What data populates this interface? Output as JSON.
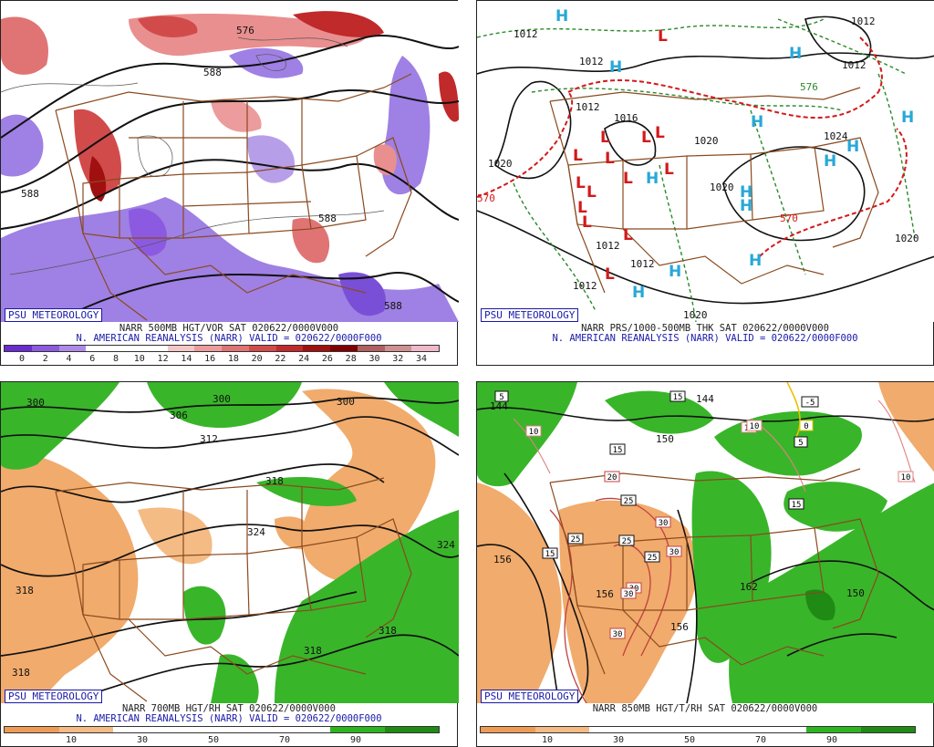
{
  "credit": "PSU METEOROLOGY",
  "panels": [
    {
      "id": "500mb",
      "caption1": "NARR 500MB HGT/VOR SAT 020622/0000V000",
      "caption2": "N. AMERICAN REANALYSIS (NARR) VALID = 020622/0000F000",
      "colorbar": [
        "#6a2bd0",
        "#8c5ae0",
        "#ae8ae8",
        "#ffffff",
        "#ffffff",
        "#ffffff",
        "#f4c7c7",
        "#ec9c9c",
        "#e07474",
        "#d24b4b",
        "#c02a2a",
        "#a01010",
        "#800000",
        "#b06060",
        "#cf9090",
        "#f0b8c8"
      ],
      "ticks": [
        "0",
        "2",
        "4",
        "6",
        "8",
        "10",
        "12",
        "14",
        "16",
        "18",
        "20",
        "22",
        "24",
        "26",
        "28",
        "30",
        "32",
        "34"
      ],
      "labels": [
        "576",
        "588",
        "588",
        "588",
        "588"
      ]
    },
    {
      "id": "prs",
      "caption1": "NARR PRS/1000-500MB THK SAT 020622/0000V000",
      "caption2": "N. AMERICAN REANALYSIS (NARR) VALID = 020622/0000F000",
      "labels": [
        "1012",
        "1012",
        "1012",
        "1016",
        "1020",
        "1020",
        "1012",
        "1012",
        "1012",
        "1020",
        "1020",
        "1024",
        "570",
        "570",
        "576",
        "1012",
        "1020",
        "1012"
      ]
    },
    {
      "id": "700mb",
      "caption1": "NARR 700MB HGT/RH SAT 020622/0000V000",
      "caption2": "N. AMERICAN REANALYSIS (NARR) VALID = 020622/0000F000",
      "colorbar": [
        "#ee9c55",
        "#f4bb85",
        "#ffffff",
        "#ffffff",
        "#ffffff",
        "#ffffff",
        "#2cb51e",
        "#1f8a14"
      ],
      "ticks": [
        "10",
        "30",
        "50",
        "70",
        "90"
      ],
      "labels": [
        "300",
        "306",
        "300",
        "300",
        "312",
        "318",
        "324",
        "318",
        "318",
        "318",
        "324",
        "318"
      ]
    },
    {
      "id": "850mb",
      "caption1": "NARR 850MB HGT/T/RH SAT 020622/0000V000",
      "colorbar": [
        "#ee9c55",
        "#f4bb85",
        "#ffffff",
        "#ffffff",
        "#ffffff",
        "#ffffff",
        "#2cb51e",
        "#1f8a14"
      ],
      "ticks": [
        "10",
        "30",
        "50",
        "70",
        "90"
      ],
      "labels": [
        "144",
        "150",
        "156",
        "162",
        "156",
        "156",
        "150",
        "144"
      ],
      "temp_boxes": [
        "5",
        "10",
        "10",
        "10",
        "-5",
        "0",
        "5",
        "15",
        "20",
        "25",
        "25",
        "25",
        "25",
        "30",
        "30",
        "30",
        "30",
        "30",
        "15",
        "15",
        "15",
        "10"
      ]
    }
  ]
}
